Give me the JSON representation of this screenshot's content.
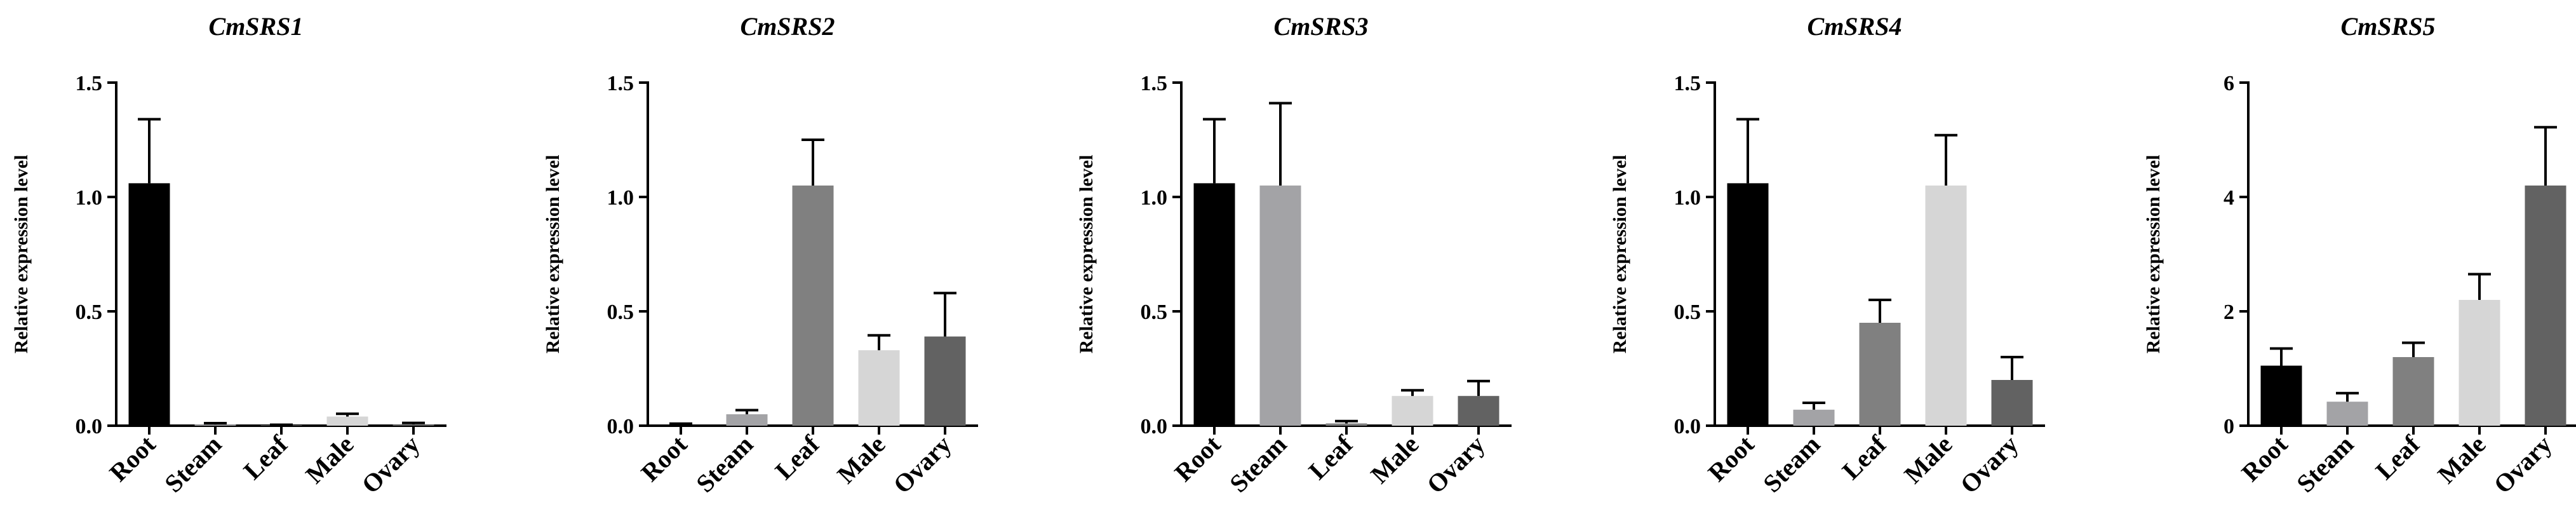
{
  "chart_data": [
    {
      "type": "bar",
      "title": "CmSRS1",
      "ylabel": "Relative expression level",
      "xlabel": "",
      "categories": [
        "Root",
        "Steam",
        "Leaf",
        "Male",
        "Ovary"
      ],
      "values": [
        1.06,
        0.005,
        0.002,
        0.04,
        0.006
      ],
      "errors": [
        0.28,
        0.006,
        0.002,
        0.012,
        0.006
      ],
      "ylim": [
        0,
        1.5
      ],
      "yticks": [
        0,
        0.5,
        1.0,
        1.5
      ],
      "ytick_labels": [
        "0.0",
        "0.5",
        "1.0",
        "1.5"
      ]
    },
    {
      "type": "bar",
      "title": "CmSRS2",
      "ylabel": "Relative expression level",
      "xlabel": "",
      "categories": [
        "Root",
        "Steam",
        "Leaf",
        "Male",
        "Ovary"
      ],
      "values": [
        0.005,
        0.05,
        1.05,
        0.33,
        0.39
      ],
      "errors": [
        0.004,
        0.018,
        0.2,
        0.065,
        0.19
      ],
      "ylim": [
        0,
        1.5
      ],
      "yticks": [
        0,
        0.5,
        1.0,
        1.5
      ],
      "ytick_labels": [
        "0.0",
        "0.5",
        "1.0",
        "1.5"
      ]
    },
    {
      "type": "bar",
      "title": "CmSRS3",
      "ylabel": "Relative expression level",
      "xlabel": "",
      "categories": [
        "Root",
        "Steam",
        "Leaf",
        "Male",
        "Ovary"
      ],
      "values": [
        1.06,
        1.05,
        0.01,
        0.13,
        0.13
      ],
      "errors": [
        0.28,
        0.36,
        0.01,
        0.025,
        0.065
      ],
      "ylim": [
        0,
        1.5
      ],
      "yticks": [
        0,
        0.5,
        1.0,
        1.5
      ],
      "ytick_labels": [
        "0.0",
        "0.5",
        "1.0",
        "1.5"
      ]
    },
    {
      "type": "bar",
      "title": "CmSRS4",
      "ylabel": "Relative expression level",
      "xlabel": "",
      "categories": [
        "Root",
        "Steam",
        "Leaf",
        "Male",
        "Ovary"
      ],
      "values": [
        1.06,
        0.07,
        0.45,
        1.05,
        0.2
      ],
      "errors": [
        0.28,
        0.03,
        0.1,
        0.22,
        0.1
      ],
      "ylim": [
        0,
        1.5
      ],
      "yticks": [
        0,
        0.5,
        1.0,
        1.5
      ],
      "ytick_labels": [
        "0.0",
        "0.5",
        "1.0",
        "1.5"
      ]
    },
    {
      "type": "bar",
      "title": "CmSRS5",
      "ylabel": "Relative expression level",
      "xlabel": "",
      "categories": [
        "Root",
        "Steam",
        "Leaf",
        "Male",
        "Ovary"
      ],
      "values": [
        1.05,
        0.42,
        1.2,
        2.2,
        4.2
      ],
      "errors": [
        0.3,
        0.15,
        0.25,
        0.45,
        1.02
      ],
      "ylim": [
        0,
        6
      ],
      "yticks": [
        0,
        2,
        4,
        6
      ],
      "ytick_labels": [
        "0",
        "2",
        "4",
        "6"
      ]
    }
  ],
  "colors": {
    "Root": "#000000",
    "Steam": "#a3a3a6",
    "Leaf": "#808080",
    "Male": "#d6d6d6",
    "Ovary": "#626262",
    "axis": "#000000"
  }
}
